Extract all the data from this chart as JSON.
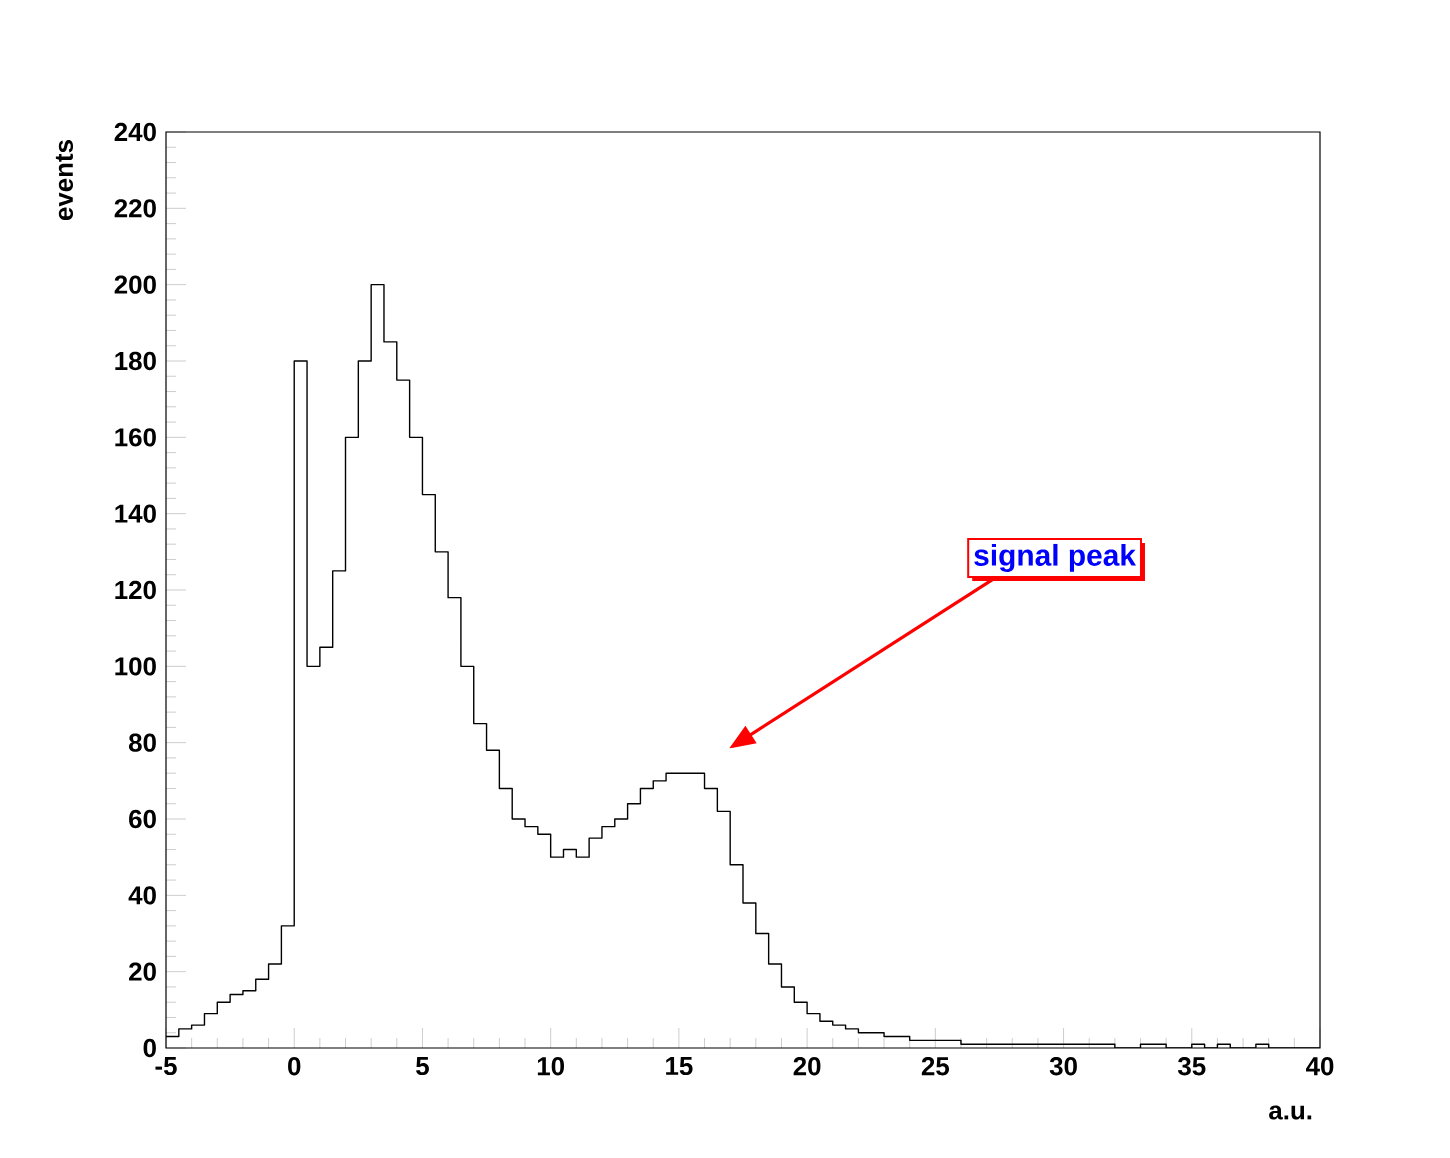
{
  "chart_data": {
    "type": "histogram",
    "xlabel": "a.u.",
    "ylabel": "events",
    "bins": [
      -5,
      -4.5,
      -4,
      -3.5,
      -3,
      -2.5,
      -2,
      -1.5,
      -1,
      -0.5,
      0,
      0.5,
      1,
      1.5,
      2,
      2.5,
      3,
      3.5,
      4,
      4.5,
      5,
      5.5,
      6,
      6.5,
      7,
      7.5,
      8,
      8.5,
      9,
      9.5,
      10,
      10.5,
      11,
      11.5,
      12,
      12.5,
      13,
      13.5,
      14,
      14.5,
      15,
      15.5,
      16,
      16.5,
      17,
      17.5,
      18,
      18.5,
      19,
      19.5,
      20,
      20.5,
      21,
      21.5,
      22,
      22.5,
      23,
      23.5,
      24,
      24.5,
      25,
      25.5,
      26,
      26.5,
      27,
      27.5,
      28,
      28.5,
      29,
      29.5,
      30,
      30.5,
      31,
      31.5,
      32,
      32.5,
      33,
      33.5,
      34,
      34.5,
      35,
      35.5,
      36,
      36.5,
      37,
      37.5,
      38,
      38.5,
      39,
      39.5,
      40
    ],
    "values": [
      3,
      5,
      6,
      9,
      12,
      14,
      15,
      18,
      22,
      32,
      180,
      100,
      105,
      125,
      160,
      180,
      200,
      185,
      175,
      160,
      145,
      130,
      118,
      100,
      85,
      78,
      68,
      60,
      58,
      56,
      50,
      52,
      50,
      55,
      58,
      60,
      64,
      68,
      70,
      72,
      72,
      72,
      68,
      62,
      48,
      38,
      30,
      22,
      16,
      12,
      9,
      7,
      6,
      5,
      4,
      4,
      3,
      3,
      2,
      2,
      2,
      2,
      1,
      1,
      1,
      1,
      1,
      1,
      1,
      1,
      1,
      1,
      1,
      1,
      0,
      0,
      1,
      1,
      0,
      0,
      1,
      0,
      1,
      0,
      0,
      1,
      0,
      0,
      0,
      0
    ],
    "color": "#000000",
    "xlim": [
      -5,
      40
    ],
    "xticks": [
      -5,
      0,
      5,
      10,
      15,
      20,
      25,
      30,
      35,
      40
    ],
    "ylim": [
      0,
      240
    ],
    "yticks": [
      0,
      20,
      40,
      60,
      80,
      100,
      120,
      140,
      160,
      180,
      200,
      220,
      240
    ],
    "grid": false,
    "annotations": [
      "signal peak"
    ]
  }
}
